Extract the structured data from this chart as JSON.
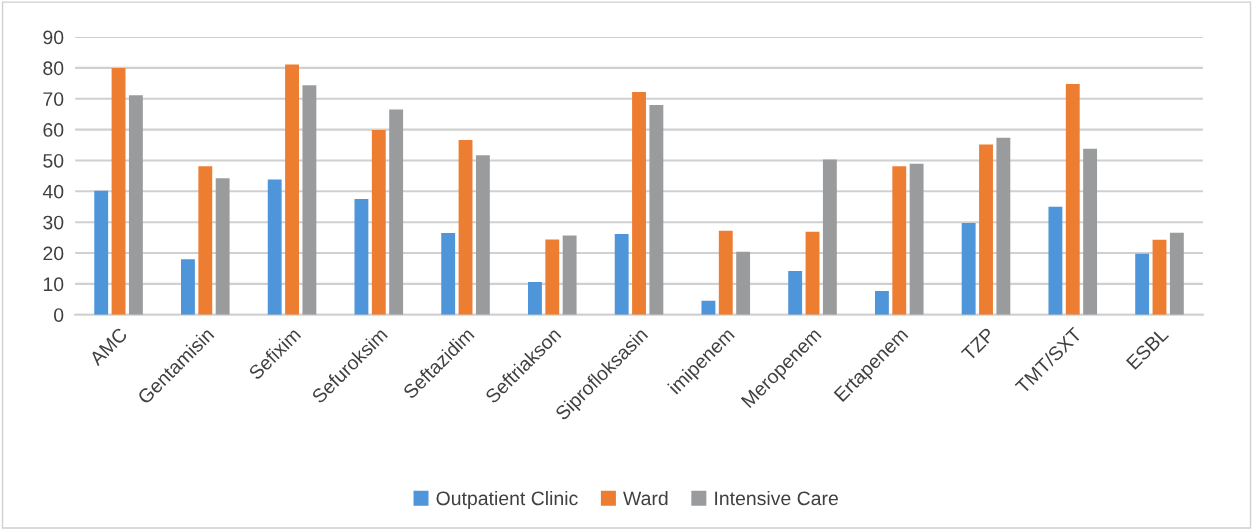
{
  "chart_data": {
    "type": "bar",
    "categories": [
      "AMC",
      "Gentamisin",
      "Sefixim",
      "Sefuroksim",
      "Seftazidim",
      "Seftriakson",
      "Siprofloksasin",
      "imipenem",
      "Meropenem",
      "Ertapenem",
      "TZP",
      "TMT/SXT",
      "ESBL"
    ],
    "series": [
      {
        "name": "Outpatient Clinic",
        "color": "#4e95d9",
        "values": [
          40.2,
          18,
          43.8,
          37.5,
          26.5,
          10.6,
          26.2,
          4.5,
          14.2,
          7.7,
          29.7,
          35,
          19.8
        ]
      },
      {
        "name": "Ward",
        "color": "#ed7d31",
        "values": [
          80,
          48.1,
          81.1,
          59.9,
          56.6,
          24.4,
          72.2,
          27.2,
          26.9,
          48.1,
          55.2,
          74.8,
          24.3
        ]
      },
      {
        "name": "Intensive Care",
        "color": "#999b9d",
        "values": [
          71.1,
          44.2,
          74.4,
          66.5,
          51.7,
          25.7,
          68,
          20.4,
          50.3,
          48.9,
          57.4,
          53.8,
          26.6
        ]
      }
    ],
    "ylim": [
      0,
      90
    ],
    "yticks": [
      0,
      10,
      20,
      30,
      40,
      50,
      60,
      70,
      80,
      90
    ],
    "grid": "y",
    "legend": "bottom"
  }
}
